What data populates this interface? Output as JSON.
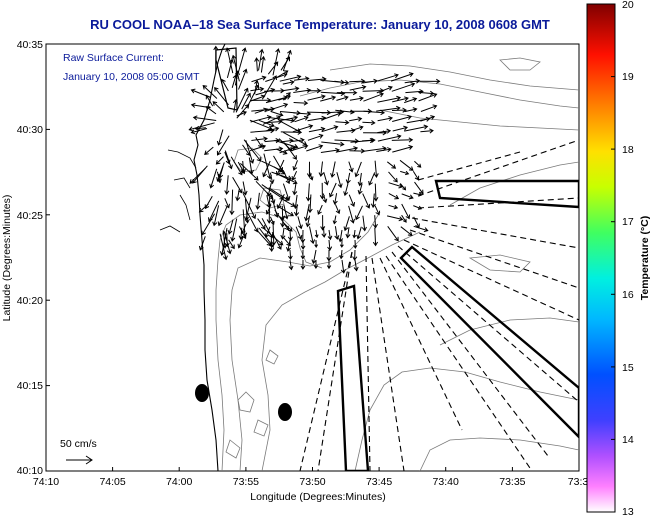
{
  "title": "RU COOL  NOAA–18  Sea Surface Temperature:  January 10, 2008 0608 GMT",
  "annotation": {
    "line1": "Raw Surface Current:",
    "line2": "January 10, 2008 05:00 GMT"
  },
  "scale_label": "50 cm/s",
  "axes": {
    "xlabel": "Longitude (Degrees:Minutes)",
    "ylabel": "Latitude (Degrees:Minutes)",
    "x_ticks": [
      "74:10",
      "74:05",
      "74:00",
      "73:55",
      "73:50",
      "73:45",
      "73:40",
      "73:35",
      "73:3"
    ],
    "y_ticks": [
      "40:35",
      "40:30",
      "40:25",
      "40:20",
      "40:15",
      "40:10"
    ]
  },
  "colorbar": {
    "label": "Temperature (°C)",
    "ticks": [
      "20",
      "19",
      "18",
      "17",
      "16",
      "15",
      "14",
      "13"
    ],
    "min": 13,
    "max": 20
  },
  "colors": {
    "title": "#0a1a9a",
    "annotation": "#0a1a9a",
    "ink": "#000000",
    "contour": "#7a7a7a"
  }
}
